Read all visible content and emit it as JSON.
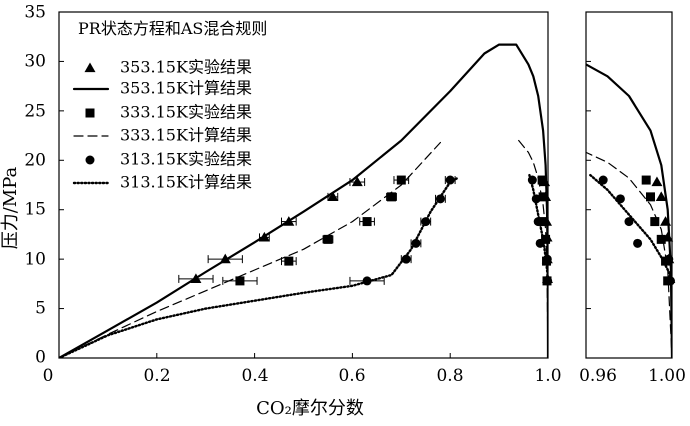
{
  "chart_data": {
    "type": "scatter",
    "title": "",
    "xlabel": "CO₂摩尔分数",
    "ylabel": "压力/MPa",
    "ylim": [
      0,
      35
    ],
    "y_ticks": [
      "0",
      "5",
      "10",
      "15",
      "20",
      "25",
      "30",
      "35"
    ],
    "panels": [
      {
        "name": "main",
        "xlim": [
          0,
          1.0
        ],
        "x_ticks": [
          0.2,
          0.4,
          0.6,
          0.8,
          1.0
        ],
        "x_tick_labels": [
          "0.2",
          "0.4",
          "0.6",
          "0.8",
          "1.0"
        ]
      },
      {
        "name": "inset",
        "xlim": [
          0.96,
          1.0
        ],
        "x_tick_labels": [
          "0.96",
          "1.00"
        ]
      }
    ],
    "x_origin_label": "0",
    "legend": {
      "title": "PR状态方程和AS混合规则",
      "position": "top-left",
      "entries": [
        {
          "label": "353.15K实验结果",
          "marker": "triangle"
        },
        {
          "label": "353.15K计算结果",
          "line": "solid"
        },
        {
          "label": "333.15K实验结果",
          "marker": "square"
        },
        {
          "label": "333.15K计算结果",
          "line": "dashed"
        },
        {
          "label": "313.15K实验结果",
          "marker": "circle"
        },
        {
          "label": "313.15K计算结果",
          "line": "dotted"
        }
      ]
    },
    "series": [
      {
        "name": "353.15K实验结果",
        "kind": "points",
        "marker": "triangle",
        "points": [
          {
            "x": 0.28,
            "y": 8.0,
            "xerr": 0.035
          },
          {
            "x": 0.34,
            "y": 10.0,
            "xerr": 0.035
          },
          {
            "x": 0.42,
            "y": 12.2,
            "xerr": 0.01
          },
          {
            "x": 0.47,
            "y": 13.8,
            "xerr": 0.015
          },
          {
            "x": 0.56,
            "y": 16.3,
            "xerr": 0.01
          },
          {
            "x": 0.61,
            "y": 17.8,
            "xerr": 0.015
          },
          {
            "x": 0.993,
            "y": 17.8
          },
          {
            "x": 0.995,
            "y": 16.3
          },
          {
            "x": 0.997,
            "y": 13.8
          },
          {
            "x": 0.998,
            "y": 12.2
          },
          {
            "x": 0.9985,
            "y": 10.0
          },
          {
            "x": 0.999,
            "y": 8.0
          }
        ]
      },
      {
        "name": "353.15K计算结果",
        "kind": "curve",
        "line": "solid",
        "points": [
          {
            "x": 0,
            "y": 0
          },
          {
            "x": 0.1,
            "y": 2.8
          },
          {
            "x": 0.2,
            "y": 5.6
          },
          {
            "x": 0.3,
            "y": 8.7
          },
          {
            "x": 0.4,
            "y": 11.7
          },
          {
            "x": 0.5,
            "y": 14.8
          },
          {
            "x": 0.6,
            "y": 18.0
          },
          {
            "x": 0.7,
            "y": 22.0
          },
          {
            "x": 0.8,
            "y": 27.0
          },
          {
            "x": 0.87,
            "y": 30.8
          },
          {
            "x": 0.9,
            "y": 31.7
          },
          {
            "x": 0.935,
            "y": 31.7
          },
          {
            "x": 0.96,
            "y": 29.7
          },
          {
            "x": 0.97,
            "y": 28.5
          },
          {
            "x": 0.98,
            "y": 26.5
          },
          {
            "x": 0.99,
            "y": 23.0
          },
          {
            "x": 0.995,
            "y": 19.5
          },
          {
            "x": 0.998,
            "y": 15.0
          },
          {
            "x": 0.9995,
            "y": 9.0
          },
          {
            "x": 1.0,
            "y": 0
          }
        ]
      },
      {
        "name": "333.15K实验结果",
        "kind": "points",
        "marker": "square",
        "points": [
          {
            "x": 0.37,
            "y": 7.8,
            "xerr": 0.035
          },
          {
            "x": 0.47,
            "y": 9.8,
            "xerr": 0.015
          },
          {
            "x": 0.55,
            "y": 12.0,
            "xerr": 0.01
          },
          {
            "x": 0.63,
            "y": 13.8,
            "xerr": 0.015
          },
          {
            "x": 0.68,
            "y": 16.3,
            "xerr": 0.01
          },
          {
            "x": 0.7,
            "y": 18.0,
            "xerr": 0.015
          },
          {
            "x": 0.988,
            "y": 18.0
          },
          {
            "x": 0.99,
            "y": 16.3
          },
          {
            "x": 0.992,
            "y": 13.8
          },
          {
            "x": 0.995,
            "y": 12.0
          },
          {
            "x": 0.997,
            "y": 9.8
          },
          {
            "x": 0.998,
            "y": 7.8
          }
        ]
      },
      {
        "name": "333.15K计算结果",
        "kind": "curve",
        "line": "dashed",
        "points": [
          {
            "x": 0,
            "y": 0
          },
          {
            "x": 0.1,
            "y": 2.4
          },
          {
            "x": 0.2,
            "y": 4.7
          },
          {
            "x": 0.3,
            "y": 6.8
          },
          {
            "x": 0.4,
            "y": 8.9
          },
          {
            "x": 0.5,
            "y": 11.0
          },
          {
            "x": 0.6,
            "y": 13.8
          },
          {
            "x": 0.7,
            "y": 17.5
          },
          {
            "x": 0.78,
            "y": 21.8
          },
          {
            "x": null,
            "y": null
          },
          {
            "x": 0.94,
            "y": 22.0
          },
          {
            "x": 0.96,
            "y": 20.8
          },
          {
            "x": 0.97,
            "y": 19.8
          },
          {
            "x": 0.98,
            "y": 18.2
          },
          {
            "x": 0.99,
            "y": 15.5
          },
          {
            "x": 0.995,
            "y": 13.0
          },
          {
            "x": 0.998,
            "y": 9.0
          },
          {
            "x": 1.0,
            "y": 0
          }
        ]
      },
      {
        "name": "313.15K实验结果",
        "kind": "points",
        "marker": "circle",
        "points": [
          {
            "x": 0.63,
            "y": 7.8,
            "xerr": 0.035
          },
          {
            "x": 0.71,
            "y": 10.0,
            "xerr": 0.01
          },
          {
            "x": 0.73,
            "y": 11.6,
            "xerr": 0.01
          },
          {
            "x": 0.75,
            "y": 13.8,
            "xerr": 0.01
          },
          {
            "x": 0.78,
            "y": 16.1,
            "xerr": 0.01
          },
          {
            "x": 0.8,
            "y": 18.0,
            "xerr": 0.01
          },
          {
            "x": 0.968,
            "y": 18.0
          },
          {
            "x": 0.976,
            "y": 16.1
          },
          {
            "x": 0.98,
            "y": 13.8
          },
          {
            "x": 0.984,
            "y": 11.6
          },
          {
            "x": 0.9985,
            "y": 10.0
          },
          {
            "x": 0.9993,
            "y": 7.8
          }
        ]
      },
      {
        "name": "313.15K计算结果",
        "kind": "curve",
        "line": "dotted",
        "points": [
          {
            "x": 0,
            "y": 0
          },
          {
            "x": 0.1,
            "y": 2.3
          },
          {
            "x": 0.2,
            "y": 3.9
          },
          {
            "x": 0.3,
            "y": 5.0
          },
          {
            "x": 0.4,
            "y": 5.8
          },
          {
            "x": 0.5,
            "y": 6.6
          },
          {
            "x": 0.6,
            "y": 7.3
          },
          {
            "x": 0.68,
            "y": 8.4
          },
          {
            "x": 0.72,
            "y": 11.0
          },
          {
            "x": 0.76,
            "y": 14.8
          },
          {
            "x": 0.8,
            "y": 17.8
          },
          {
            "x": 0.815,
            "y": 18.2
          },
          {
            "x": null,
            "y": null
          },
          {
            "x": 0.962,
            "y": 18.5
          },
          {
            "x": 0.97,
            "y": 17.0
          },
          {
            "x": 0.98,
            "y": 14.5
          },
          {
            "x": 0.99,
            "y": 12.0
          },
          {
            "x": 0.995,
            "y": 10.2
          },
          {
            "x": 0.999,
            "y": 8.5
          },
          {
            "x": 1.0,
            "y": 7.5
          }
        ]
      }
    ]
  }
}
